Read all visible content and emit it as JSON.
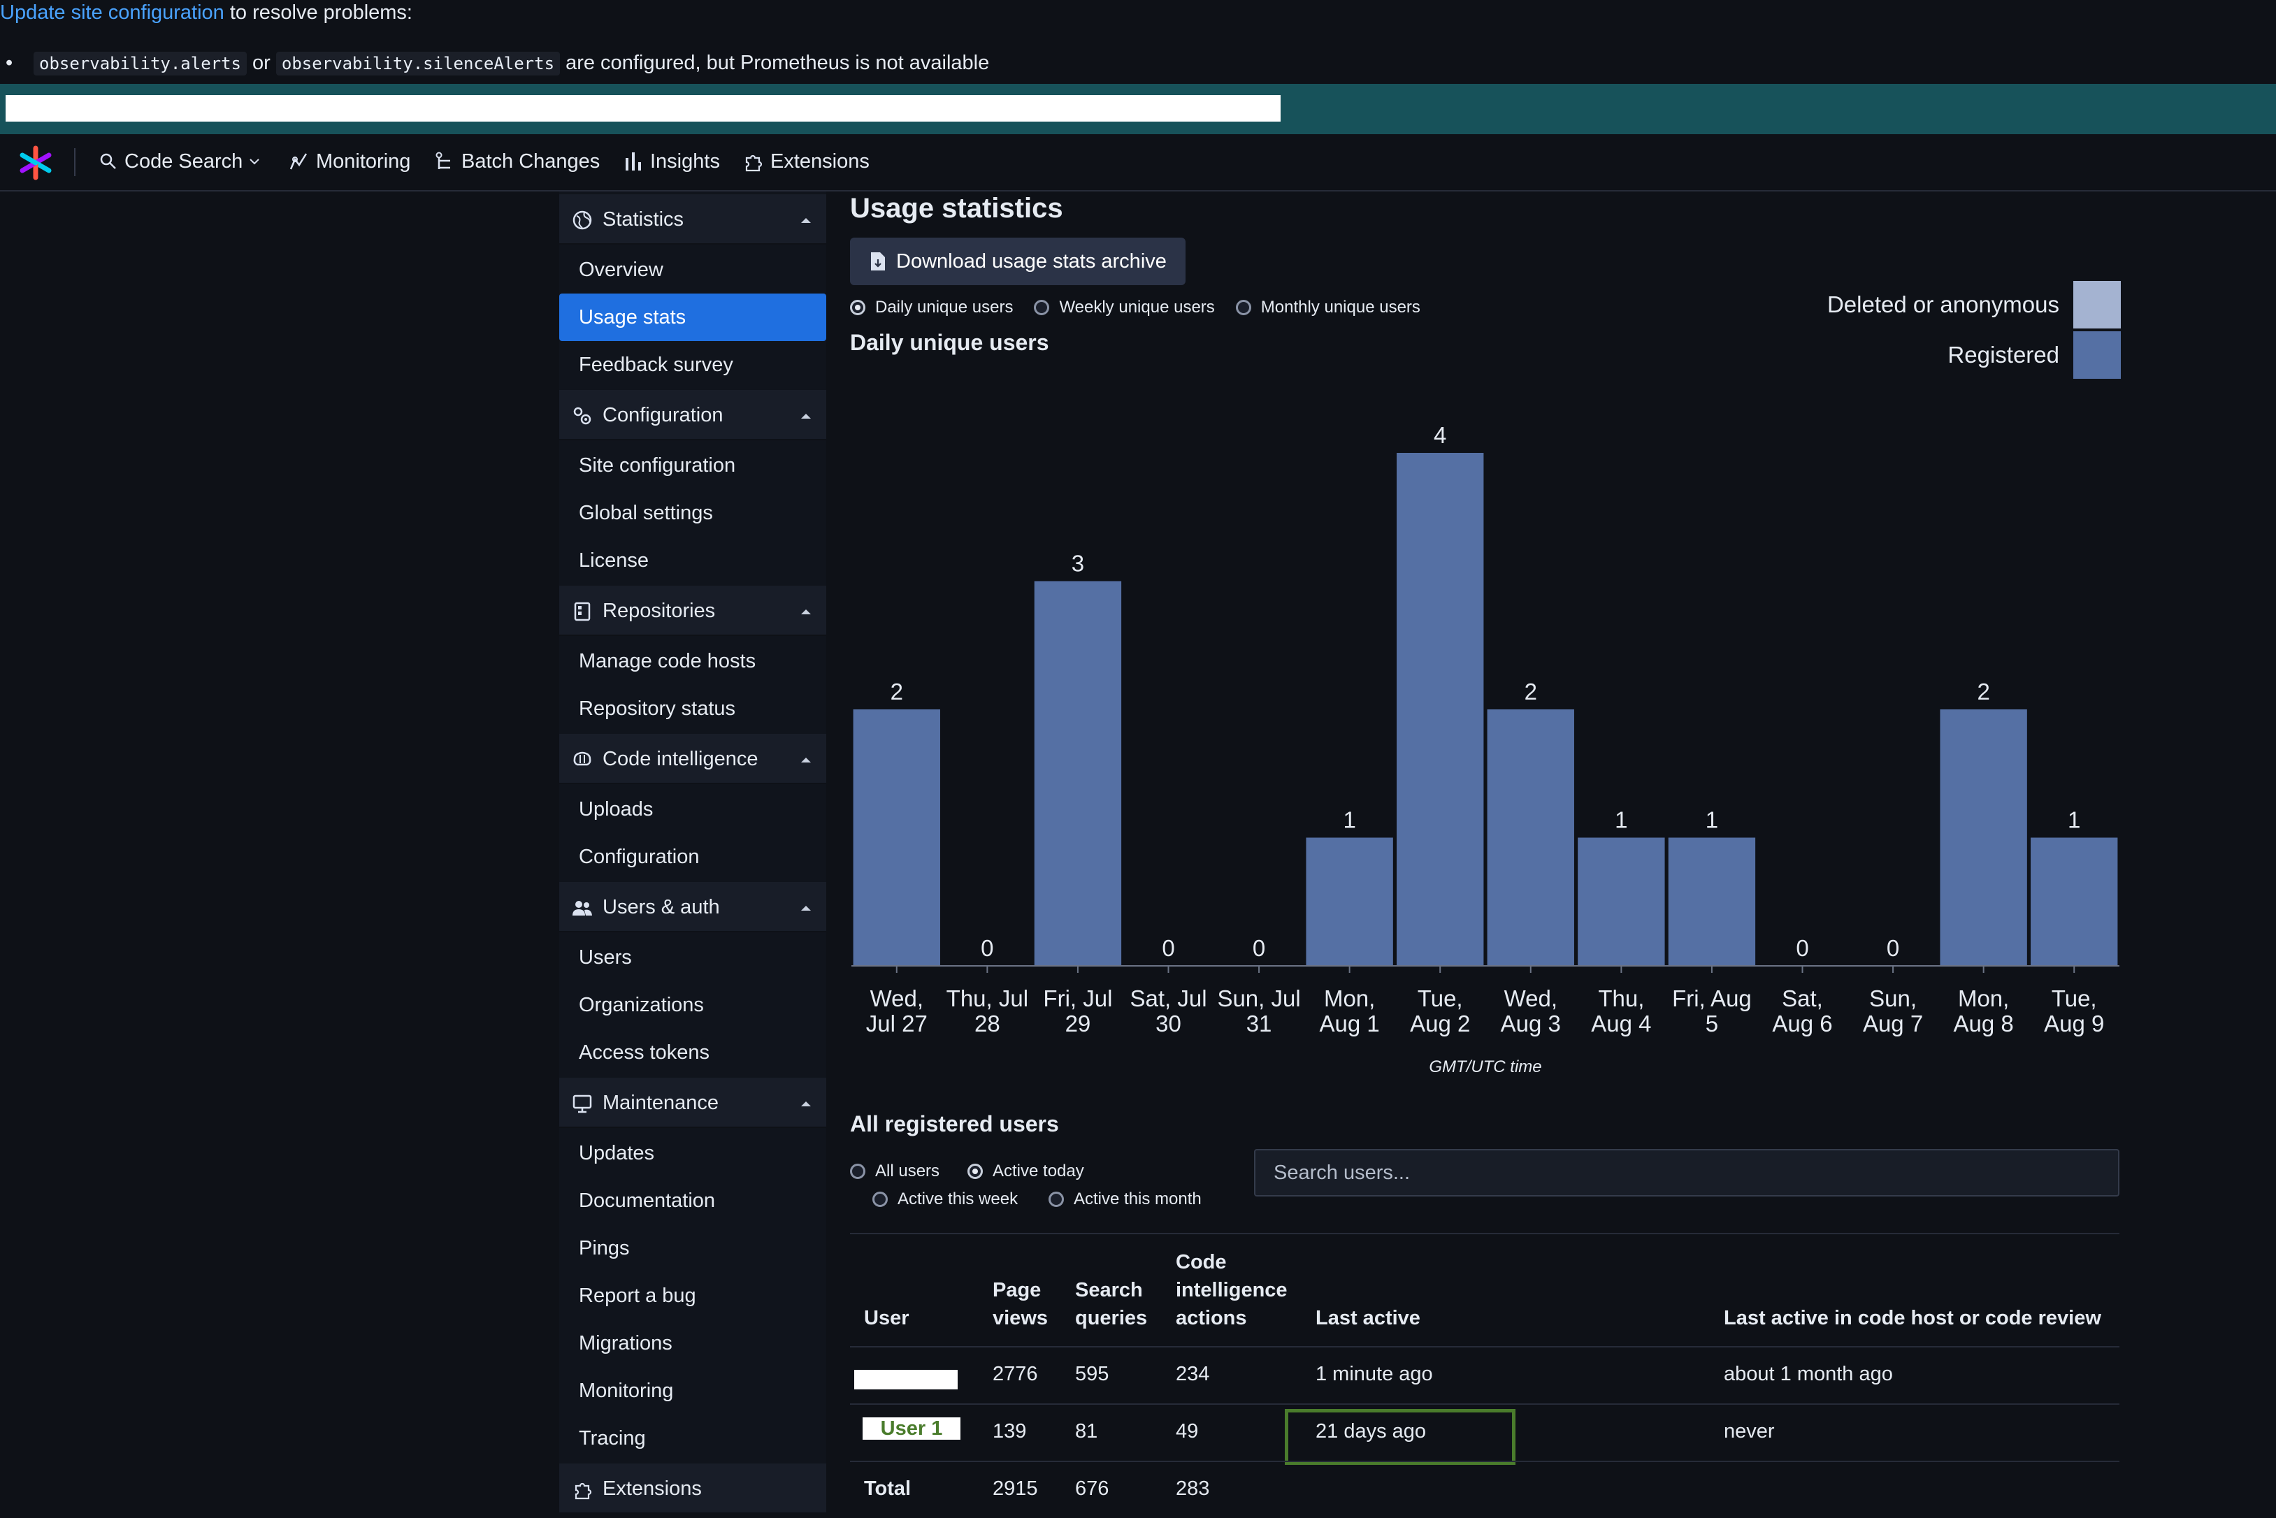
{
  "alert": {
    "link": "Update site configuration",
    "rest": " to resolve problems:",
    "bullet": "•",
    "code1": "observability.alerts",
    "or": " or ",
    "code2": "observability.silenceAlerts",
    "message": " are configured, but Prometheus is not available"
  },
  "nav": {
    "code_search": "Code Search",
    "monitoring": "Monitoring",
    "batch_changes": "Batch Changes",
    "insights": "Insights",
    "extensions": "Extensions"
  },
  "sidebar": {
    "statistics": "Statistics",
    "overview": "Overview",
    "usage_stats": "Usage stats",
    "feedback_survey": "Feedback survey",
    "configuration": "Configuration",
    "site_configuration": "Site configuration",
    "global_settings": "Global settings",
    "license": "License",
    "repositories": "Repositories",
    "manage_code_hosts": "Manage code hosts",
    "repository_status": "Repository status",
    "code_intelligence": "Code intelligence",
    "uploads": "Uploads",
    "ci_configuration": "Configuration",
    "users_auth": "Users & auth",
    "users": "Users",
    "organizations": "Organizations",
    "access_tokens": "Access tokens",
    "maintenance": "Maintenance",
    "updates": "Updates",
    "documentation": "Documentation",
    "pings": "Pings",
    "report_bug": "Report a bug",
    "migrations": "Migrations",
    "monitoring": "Monitoring",
    "tracing": "Tracing",
    "extensions": "Extensions"
  },
  "main": {
    "title": "Usage statistics",
    "download": "Download usage stats archive",
    "period_options": [
      "Daily unique users",
      "Weekly unique users",
      "Monthly unique users"
    ],
    "period_selected": "Daily unique users",
    "chart_title": "Daily unique users"
  },
  "legend": {
    "deleted": "Deleted or anonymous",
    "registered": "Registered"
  },
  "colors": {
    "registered": "#5570a4",
    "deleted": "#a4b3d1",
    "active": "#1f6fe0",
    "highlight": "#4a7c2c"
  },
  "chart_data": {
    "type": "bar",
    "categories": [
      [
        "Wed,",
        "Jul 27"
      ],
      [
        "Thu, Jul",
        "28"
      ],
      [
        "Fri, Jul",
        "29"
      ],
      [
        "Sat, Jul",
        "30"
      ],
      [
        "Sun, Jul",
        "31"
      ],
      [
        "Mon,",
        "Aug 1"
      ],
      [
        "Tue,",
        "Aug 2"
      ],
      [
        "Wed,",
        "Aug 3"
      ],
      [
        "Thu,",
        "Aug 4"
      ],
      [
        "Fri, Aug",
        "5"
      ],
      [
        "Sat,",
        "Aug 6"
      ],
      [
        "Sun,",
        "Aug 7"
      ],
      [
        "Mon,",
        "Aug 8"
      ],
      [
        "Tue,",
        "Aug 9"
      ]
    ],
    "values": [
      2,
      0,
      3,
      0,
      0,
      1,
      4,
      2,
      1,
      1,
      0,
      0,
      2,
      1
    ],
    "xlabel": "GMT/UTC time",
    "ylim": [
      0,
      4
    ],
    "grid": false
  },
  "users": {
    "title": "All registered users",
    "filters": [
      "All users",
      "Active today",
      "Active this week",
      "Active this month"
    ],
    "filter_selected": "Active today",
    "search_placeholder": "Search users...",
    "headers": {
      "user": "User",
      "page_views": [
        "Page",
        "views"
      ],
      "search_queries": [
        "Search",
        "queries"
      ],
      "code_intel": [
        "Code",
        "intelligence",
        "actions"
      ],
      "last_active": "Last active",
      "last_active_code_host": "Last active in code host or code review"
    },
    "rows": [
      {
        "user": "",
        "page_views": "2776",
        "search_queries": "595",
        "code_intel": "234",
        "last_active": "1 minute ago",
        "last_active_code_host": "about 1 month ago"
      },
      {
        "user": "User 1",
        "page_views": "139",
        "search_queries": "81",
        "code_intel": "49",
        "last_active": "21 days ago",
        "last_active_code_host": "never"
      }
    ],
    "total": {
      "label": "Total",
      "page_views": "2915",
      "search_queries": "676",
      "code_intel": "283"
    }
  }
}
